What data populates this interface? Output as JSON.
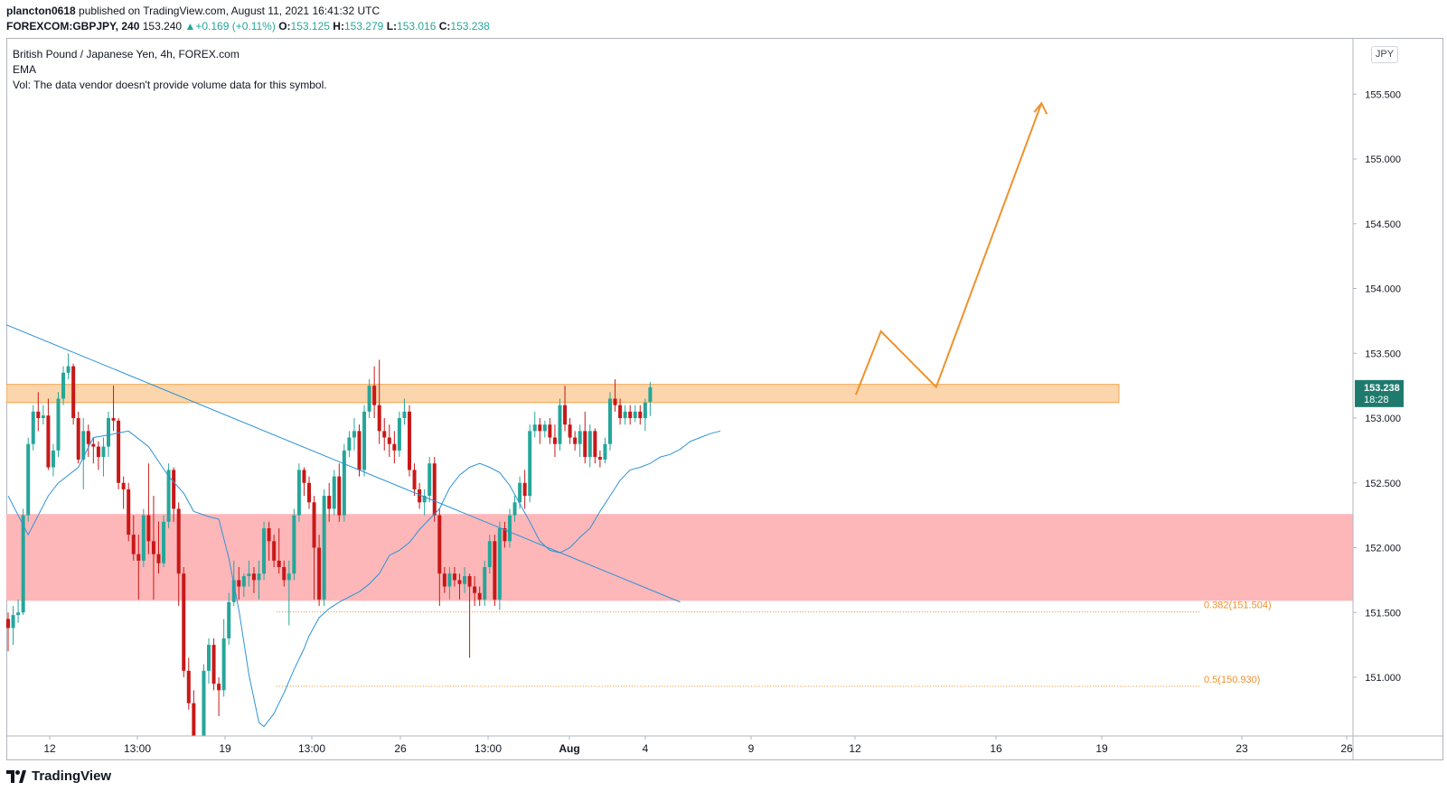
{
  "header": {
    "author": "plancton0618",
    "published": " published on TradingView.com, August 11, 2021 16:41:32 UTC",
    "symbol": "FOREXCOM:GBPJPY, 240",
    "last": "153.240",
    "change": "+0.169 (+0.11%)",
    "o_label": "O:",
    "o": "153.125",
    "h_label": "H:",
    "h": "153.279",
    "l_label": "L:",
    "l": "153.016",
    "c_label": "C:",
    "c": "153.238"
  },
  "legend": {
    "title": "British Pound / Japanese Yen, 4h, FOREX.com",
    "ema": "EMA",
    "vol": "Vol: The data vendor doesn't provide volume data for this symbol."
  },
  "currency_button": "JPY",
  "footer": {
    "brand": "TradingView",
    "logo_icon": "tradingview-logo-icon"
  },
  "colors": {
    "up": "#26a69a",
    "down": "#c81818",
    "ema": "#2d93d6",
    "resistance_zone": "#f9c78f",
    "support_zone": "#fdb3b5",
    "projection": "#f0912c",
    "fib": "#f0912c",
    "price_tag": "#1f7a6e"
  },
  "chart_data": {
    "type": "candlestick",
    "symbol": "FOREXCOM:GBPJPY",
    "interval": "4h",
    "x_ticks": [
      "12",
      "13:00",
      "19",
      "13:00",
      "26",
      "13:00",
      "Aug",
      "4",
      "9",
      "12",
      "16",
      "19",
      "23",
      "26"
    ],
    "y_ticks": [
      "151.000",
      "151.500",
      "152.000",
      "152.500",
      "153.000",
      "153.500",
      "154.000",
      "154.500",
      "155.000",
      "155.500"
    ],
    "ylim": [
      150.55,
      155.95
    ],
    "last_price": "153.238",
    "countdown": "18:28",
    "zones": [
      {
        "name": "resistance",
        "from": 153.12,
        "to": 153.26
      },
      {
        "name": "support",
        "from": 151.59,
        "to": 152.26
      }
    ],
    "fib_levels": [
      {
        "label": "0.382(151.504)",
        "value": 151.504
      },
      {
        "label": "0.5(150.930)",
        "value": 150.93
      }
    ],
    "trendline": [
      [
        0,
        153.72
      ],
      [
        134,
        151.58
      ]
    ],
    "projection_path": [
      [
        169,
        153.18
      ],
      [
        174,
        153.67
      ],
      [
        185,
        153.24
      ],
      [
        206,
        155.43
      ]
    ],
    "candles": [
      [
        151.45,
        151.5,
        151.2,
        151.38
      ],
      [
        151.38,
        151.55,
        151.25,
        151.48
      ],
      [
        151.48,
        151.6,
        151.42,
        151.5
      ],
      [
        151.5,
        152.3,
        151.48,
        152.25
      ],
      [
        152.25,
        152.85,
        152.2,
        152.8
      ],
      [
        152.8,
        153.1,
        152.75,
        153.05
      ],
      [
        153.05,
        153.2,
        152.9,
        153.0
      ],
      [
        153.0,
        153.1,
        152.95,
        153.02
      ],
      [
        153.02,
        153.15,
        152.6,
        152.62
      ],
      [
        152.62,
        152.8,
        152.55,
        152.75
      ],
      [
        152.75,
        153.2,
        152.7,
        153.15
      ],
      [
        153.15,
        153.4,
        153.1,
        153.35
      ],
      [
        153.35,
        153.5,
        153.3,
        153.4
      ],
      [
        153.4,
        153.42,
        152.95,
        153.0
      ],
      [
        153.0,
        153.05,
        152.65,
        152.68
      ],
      [
        152.68,
        153.0,
        152.45,
        152.9
      ],
      [
        152.9,
        152.95,
        152.7,
        152.8
      ],
      [
        152.8,
        152.85,
        152.65,
        152.78
      ],
      [
        152.78,
        152.82,
        152.6,
        152.7
      ],
      [
        152.7,
        152.85,
        152.55,
        152.78
      ],
      [
        152.78,
        153.05,
        152.7,
        153.0
      ],
      [
        153.0,
        153.25,
        152.9,
        152.98
      ],
      [
        152.98,
        153.0,
        152.45,
        152.5
      ],
      [
        152.5,
        152.55,
        152.3,
        152.45
      ],
      [
        152.45,
        152.5,
        152.05,
        152.1
      ],
      [
        152.1,
        152.25,
        151.9,
        151.95
      ],
      [
        151.95,
        152.1,
        151.6,
        151.9
      ],
      [
        151.9,
        152.3,
        151.85,
        152.25
      ],
      [
        152.25,
        152.65,
        151.95,
        152.05
      ],
      [
        152.05,
        152.4,
        151.6,
        151.95
      ],
      [
        151.95,
        152.2,
        151.8,
        151.88
      ],
      [
        151.88,
        152.25,
        151.85,
        152.2
      ],
      [
        152.2,
        152.65,
        152.15,
        152.6
      ],
      [
        152.6,
        152.62,
        152.2,
        152.3
      ],
      [
        152.3,
        152.35,
        151.55,
        151.8
      ],
      [
        151.8,
        151.85,
        151.0,
        151.05
      ],
      [
        151.05,
        151.15,
        150.75,
        150.8
      ],
      [
        150.8,
        150.9,
        150.3,
        150.35
      ],
      [
        150.35,
        150.4,
        149.8,
        149.9
      ]
    ],
    "candles_2": [
      [
        150.5,
        151.1,
        150.45,
        151.05
      ],
      [
        151.05,
        151.3,
        150.95,
        151.25
      ],
      [
        151.25,
        151.3,
        150.9,
        150.95
      ],
      [
        150.95,
        151.0,
        150.7,
        150.9
      ],
      [
        150.9,
        151.45,
        150.85,
        151.3
      ],
      [
        151.3,
        151.65,
        151.25,
        151.58
      ],
      [
        151.58,
        151.9,
        151.55,
        151.75
      ],
      [
        151.75,
        151.85,
        151.6,
        151.7
      ],
      [
        151.7,
        151.8,
        151.62,
        151.78
      ],
      [
        151.78,
        151.9,
        151.7,
        151.8
      ],
      [
        151.8,
        151.85,
        151.65,
        151.75
      ],
      [
        151.75,
        151.9,
        151.6,
        151.8
      ],
      [
        151.8,
        152.2,
        151.75,
        152.15
      ],
      [
        152.15,
        152.2,
        151.9,
        152.05
      ],
      [
        152.05,
        152.1,
        151.85,
        151.9
      ],
      [
        151.9,
        152.15,
        151.8,
        151.85
      ],
      [
        151.85,
        151.9,
        151.7,
        151.75
      ],
      [
        151.75,
        151.9,
        151.4,
        151.8
      ],
      [
        151.8,
        152.3,
        151.75,
        152.25
      ],
      [
        152.25,
        152.65,
        152.2,
        152.6
      ],
      [
        152.6,
        152.62,
        152.4,
        152.5
      ],
      [
        152.5,
        152.55,
        152.3,
        152.35
      ],
      [
        152.35,
        152.4,
        151.6,
        152.0
      ],
      [
        152.0,
        152.1,
        151.55,
        151.6
      ],
      [
        151.6,
        152.45,
        151.55,
        152.4
      ],
      [
        152.4,
        152.5,
        152.2,
        152.3
      ],
      [
        152.3,
        152.6,
        152.25,
        152.55
      ],
      [
        152.55,
        152.65,
        152.2,
        152.25
      ],
      [
        152.25,
        152.8,
        152.2,
        152.75
      ],
      [
        152.75,
        152.9,
        152.7,
        152.85
      ],
      [
        152.85,
        153.0,
        152.75,
        152.9
      ],
      [
        152.9,
        152.95,
        152.55,
        152.6
      ],
      [
        152.6,
        153.1,
        152.55,
        153.05
      ],
      [
        153.05,
        153.3,
        153.0,
        153.25
      ],
      [
        153.25,
        153.4,
        153.0,
        153.1
      ],
      [
        153.1,
        153.45,
        152.8,
        152.9
      ],
      [
        152.9,
        153.0,
        152.75,
        152.85
      ],
      [
        152.85,
        152.95,
        152.7,
        152.8
      ],
      [
        152.8,
        152.9,
        152.65,
        152.75
      ],
      [
        152.75,
        153.05,
        152.7,
        153.0
      ],
      [
        153.0,
        153.15,
        152.95,
        153.05
      ],
      [
        153.05,
        153.1,
        152.55,
        152.6
      ],
      [
        152.6,
        152.65,
        152.4,
        152.45
      ],
      [
        152.45,
        152.5,
        152.3,
        152.35
      ],
      [
        152.35,
        152.45,
        152.25,
        152.4
      ],
      [
        152.4,
        152.7,
        152.35,
        152.65
      ],
      [
        152.65,
        152.7,
        152.2,
        152.25
      ],
      [
        152.25,
        152.3,
        151.55,
        151.8
      ],
      [
        151.8,
        151.85,
        151.65,
        151.7
      ],
      [
        151.7,
        151.85,
        151.6,
        151.8
      ],
      [
        151.8,
        151.85,
        151.7,
        151.75
      ],
      [
        151.75,
        151.8,
        151.6,
        151.72
      ],
      [
        151.72,
        151.85,
        151.65,
        151.78
      ],
      [
        151.78,
        151.8,
        151.15,
        151.7
      ],
      [
        151.7,
        151.78,
        151.55,
        151.65
      ],
      [
        151.65,
        151.7,
        151.55,
        151.6
      ],
      [
        151.6,
        151.9,
        151.55,
        151.85
      ],
      [
        151.85,
        152.1,
        151.8,
        152.05
      ],
      [
        152.05,
        152.1,
        151.55,
        151.6
      ],
      [
        151.6,
        152.2,
        151.52,
        152.15
      ],
      [
        152.15,
        152.2,
        152.0,
        152.05
      ],
      [
        152.05,
        152.3,
        152.0,
        152.25
      ],
      [
        152.25,
        152.4,
        152.2,
        152.35
      ],
      [
        152.35,
        152.55,
        152.3,
        152.5
      ],
      [
        152.5,
        152.6,
        152.3,
        152.4
      ],
      [
        152.4,
        152.95,
        152.35,
        152.9
      ],
      [
        152.9,
        153.05,
        152.85,
        152.95
      ],
      [
        152.95,
        153.0,
        152.8,
        152.9
      ],
      [
        152.9,
        152.98,
        152.85,
        152.95
      ],
      [
        152.95,
        153.0,
        152.8,
        152.85
      ],
      [
        152.85,
        152.95,
        152.7,
        152.8
      ],
      [
        152.8,
        153.15,
        152.75,
        153.1
      ],
      [
        153.1,
        153.25,
        152.9,
        152.95
      ],
      [
        152.95,
        153.0,
        152.8,
        152.85
      ],
      [
        152.85,
        152.9,
        152.75,
        152.8
      ],
      [
        152.8,
        152.95,
        152.7,
        152.9
      ],
      [
        152.9,
        153.05,
        152.65,
        152.7
      ],
      [
        152.7,
        152.95,
        152.62,
        152.9
      ],
      [
        152.9,
        152.92,
        152.65,
        152.7
      ],
      [
        152.7,
        152.75,
        152.62,
        152.68
      ],
      [
        152.68,
        152.85,
        152.65,
        152.8
      ],
      [
        152.8,
        153.2,
        152.75,
        153.15
      ],
      [
        153.15,
        153.3,
        153.05,
        153.1
      ],
      [
        153.1,
        153.15,
        152.95,
        153.0
      ],
      [
        153.0,
        153.1,
        152.95,
        153.05
      ],
      [
        153.05,
        153.1,
        152.95,
        153.0
      ],
      [
        153.0,
        153.1,
        152.97,
        153.05
      ],
      [
        153.05,
        153.1,
        152.95,
        153.0
      ],
      [
        153.0,
        153.15,
        152.9,
        153.12
      ],
      [
        153.125,
        153.279,
        153.016,
        153.238
      ]
    ],
    "ema": [
      [
        0,
        152.4
      ],
      [
        4,
        152.1
      ],
      [
        8,
        152.4
      ],
      [
        10,
        152.5
      ],
      [
        14,
        152.62
      ],
      [
        17,
        152.85
      ],
      [
        20,
        152.87
      ],
      [
        24,
        152.9
      ],
      [
        28,
        152.78
      ],
      [
        32,
        152.55
      ],
      [
        35,
        152.42
      ],
      [
        37,
        152.28
      ],
      [
        40,
        152.24
      ],
      [
        42,
        152.22
      ],
      [
        44,
        151.92
      ],
      [
        46,
        151.52
      ],
      [
        48,
        151.02
      ],
      [
        50,
        150.65
      ],
      [
        51,
        150.62
      ],
      [
        53,
        150.72
      ],
      [
        55,
        150.88
      ],
      [
        57,
        151.06
      ],
      [
        59,
        151.22
      ],
      [
        60,
        151.32
      ],
      [
        62,
        151.46
      ],
      [
        64,
        151.53
      ],
      [
        66,
        151.58
      ],
      [
        68,
        151.62
      ],
      [
        70,
        151.66
      ],
      [
        72,
        151.72
      ],
      [
        74,
        151.8
      ],
      [
        76,
        151.94
      ],
      [
        78,
        151.98
      ],
      [
        80,
        152.04
      ],
      [
        82,
        152.14
      ],
      [
        84,
        152.22
      ],
      [
        86,
        152.3
      ],
      [
        88,
        152.46
      ],
      [
        90,
        152.56
      ],
      [
        92,
        152.62
      ],
      [
        94,
        152.65
      ],
      [
        96,
        152.62
      ],
      [
        98,
        152.58
      ],
      [
        100,
        152.48
      ],
      [
        102,
        152.34
      ],
      [
        104,
        152.2
      ],
      [
        106,
        152.05
      ],
      [
        108,
        151.98
      ],
      [
        110,
        151.96
      ],
      [
        112,
        152.0
      ],
      [
        114,
        152.08
      ],
      [
        116,
        152.15
      ],
      [
        118,
        152.28
      ],
      [
        120,
        152.4
      ],
      [
        122,
        152.52
      ],
      [
        124,
        152.6
      ],
      [
        126,
        152.62
      ],
      [
        128,
        152.65
      ],
      [
        130,
        152.7
      ],
      [
        132,
        152.72
      ],
      [
        134,
        152.76
      ],
      [
        136,
        152.82
      ],
      [
        138,
        152.85
      ],
      [
        140,
        152.88
      ],
      [
        142,
        152.9
      ]
    ]
  }
}
